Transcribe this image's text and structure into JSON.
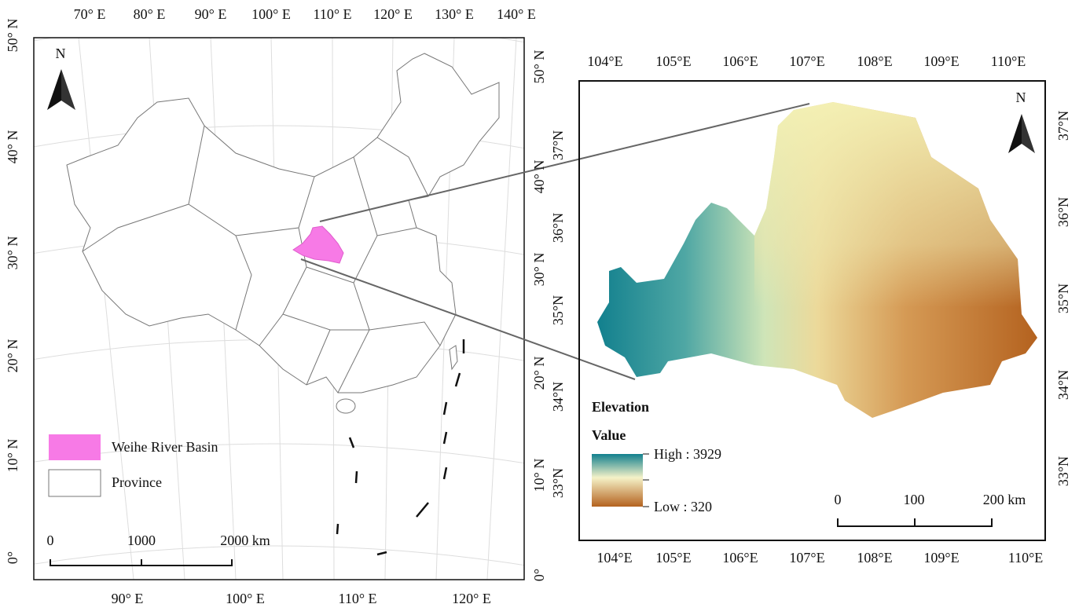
{
  "left_map": {
    "top_labels": [
      "70° E",
      "80° E",
      "90° E",
      "100° E",
      "110° E",
      "120° E",
      "130° E",
      "140° E"
    ],
    "bottom_labels": [
      "90° E",
      "100° E",
      "110° E",
      "120° E"
    ],
    "left_labels": [
      "50° N",
      "40° N",
      "30° N",
      "20° N",
      "10° N",
      "0°"
    ],
    "right_labels": [
      "50° N",
      "40° N",
      "30° N",
      "20° N",
      "10° N",
      "0°"
    ],
    "north": "N",
    "legend": [
      "Weihe River Basin",
      "Province"
    ],
    "scale_bar": [
      "0",
      "1000",
      "2000  km"
    ]
  },
  "right_map": {
    "top_labels": [
      "104°E",
      "105°E",
      "106°E",
      "107°E",
      "108°E",
      "109°E",
      "110°E"
    ],
    "bottom_labels": [
      "104°E",
      "105°E",
      "106°E",
      "107°E",
      "108°E",
      "109°E",
      "110°E"
    ],
    "left_labels": [
      "37°N",
      "36°N",
      "35°N",
      "34°N",
      "33°N"
    ],
    "right_labels": [
      "37°N",
      "36°N",
      "35°N",
      "34°N",
      "33°N"
    ],
    "north": "N",
    "legend": {
      "title": "Elevation",
      "subtitle": "Value",
      "high": "High : 3929",
      "low": "Low : 320"
    },
    "scale_bar": [
      "0",
      "100",
      "200 km"
    ]
  }
}
